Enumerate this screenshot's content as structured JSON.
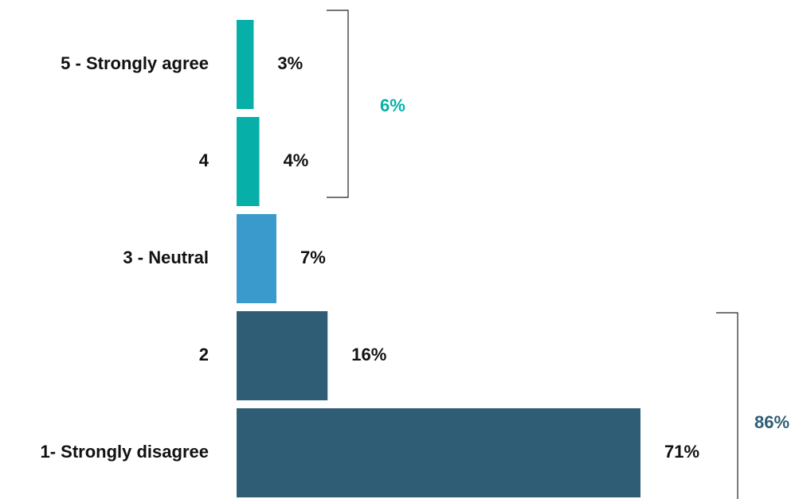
{
  "chart_data": {
    "type": "bar",
    "orientation": "horizontal",
    "title": "",
    "xlabel": "",
    "ylabel": "",
    "grid": false,
    "legend": "none",
    "xlim": [
      0,
      71
    ],
    "categories": [
      "5 - Strongly agree",
      "4",
      "3 - Neutral",
      "2",
      "1- Strongly disagree"
    ],
    "values": [
      3,
      4,
      7,
      16,
      71
    ],
    "value_labels": [
      "3%",
      "4%",
      "7%",
      "16%",
      "71%"
    ],
    "bar_colors": [
      "#06b0a8",
      "#06b0a8",
      "#3a9acc",
      "#2f5d76",
      "#2f5d76"
    ],
    "groups": [
      {
        "label": "6%",
        "value": 6,
        "categories": [
          "5 - Strongly agree",
          "4"
        ],
        "color": "#06b0a8"
      },
      {
        "label": "86%",
        "value": 86,
        "categories": [
          "2",
          "1- Strongly disagree"
        ],
        "color": "#2f5d76"
      }
    ]
  }
}
